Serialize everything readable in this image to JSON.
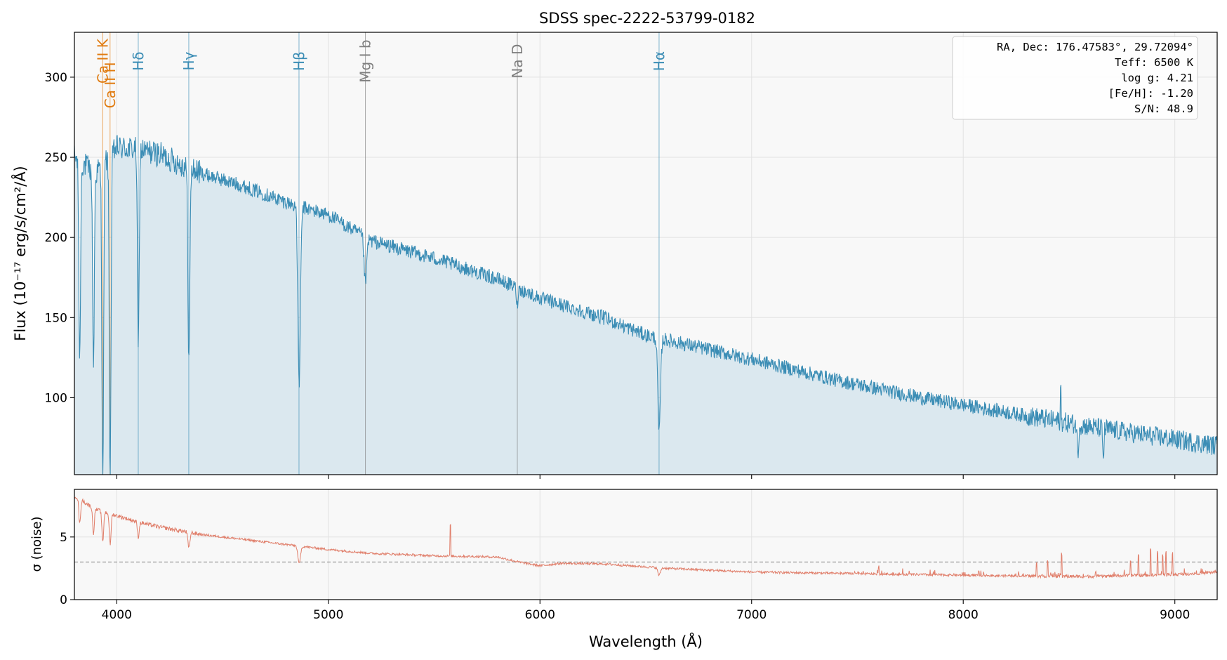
{
  "chart_data": [
    {
      "type": "line",
      "panel": "flux",
      "title": "SDSS spec-2222-53799-0182",
      "xlabel": "",
      "ylabel": "Flux (10⁻¹⁷ erg/s/cm²/Å)",
      "xlim": [
        3800,
        9200
      ],
      "ylim": [
        52,
        328
      ],
      "yticks": [
        100,
        150,
        200,
        250,
        300
      ],
      "xticks": [
        4000,
        5000,
        6000,
        7000,
        8000,
        9000
      ],
      "grid": true,
      "series": [
        {
          "style": "line with filled area",
          "color": "#3b8db5",
          "fill_color": "#dbe8ef",
          "continuum": {
            "x": [
              3800,
              3900,
              4000,
              4100,
              4200,
              4300,
              4400,
              4600,
              4800,
              5000,
              5200,
              5500,
              5800,
              6000,
              6300,
              6500,
              6600,
              6800,
              7000,
              7400,
              7800,
              8200,
              8600,
              9000,
              9200
            ],
            "y": [
              250,
              240,
              256,
              255,
              252,
              246,
              240,
              232,
              222,
              214,
              198,
              187,
              174,
              162,
              150,
              139,
              136,
              130,
              124,
              111,
              100,
              91,
              82,
              74,
              70
            ]
          },
          "absorption_features": [
            {
              "x": 3825,
              "depth": 125,
              "width": 4
            },
            {
              "x": 3890,
              "depth": 120,
              "width": 4
            },
            {
              "x": 3934,
              "depth": 200,
              "width": 4
            },
            {
              "x": 3969,
              "depth": 200,
              "width": 4
            },
            {
              "x": 4102,
              "depth": 125,
              "width": 4
            },
            {
              "x": 4341,
              "depth": 120,
              "width": 4.5
            },
            {
              "x": 4862,
              "depth": 110,
              "width": 6
            },
            {
              "x": 5175,
              "depth": 28,
              "width": 6
            },
            {
              "x": 5892,
              "depth": 12,
              "width": 3
            },
            {
              "x": 6563,
              "depth": 60,
              "width": 6
            },
            {
              "x": 8542,
              "depth": 20,
              "width": 3
            },
            {
              "x": 8662,
              "depth": 18,
              "width": 3
            }
          ],
          "emission_spikes": [
            {
              "x": 8460,
              "height": 20
            }
          ]
        }
      ],
      "spectral_lines": [
        {
          "label": "Ca II K",
          "x": 3933.7,
          "color": "#e07b10",
          "label_y": 310
        },
        {
          "label": "Ca II H",
          "x": 3968.5,
          "color": "#e07b10",
          "label_y": 295
        },
        {
          "label": "Hδ",
          "x": 4101.7,
          "color": "#3b8db5",
          "label_y": 310
        },
        {
          "label": "Hγ",
          "x": 4340.5,
          "color": "#3b8db5",
          "label_y": 310
        },
        {
          "label": "Hβ",
          "x": 4861.3,
          "color": "#3b8db5",
          "label_y": 310
        },
        {
          "label": "Mg I b",
          "x": 5175.0,
          "color": "#7f7f7f",
          "label_y": 310
        },
        {
          "label": "Na D",
          "x": 5893.0,
          "color": "#7f7f7f",
          "label_y": 310
        },
        {
          "label": "Hα",
          "x": 6562.8,
          "color": "#3b8db5",
          "label_y": 310
        }
      ],
      "annotation": {
        "placement": "top-right",
        "lines": [
          "RA, Dec: 176.47583°, 29.72094°",
          "Teff: 6500 K",
          "log g: 4.21",
          "[Fe/H]: -1.20",
          "S/N: 48.9"
        ]
      }
    },
    {
      "type": "line",
      "panel": "noise",
      "title": "",
      "xlabel": "Wavelength (Å)",
      "ylabel": "σ (noise)",
      "xlim": [
        3800,
        9200
      ],
      "ylim": [
        0,
        8.8
      ],
      "yticks": [
        0,
        5
      ],
      "xticks": [
        4000,
        5000,
        6000,
        7000,
        8000,
        9000
      ],
      "grid": true,
      "series": [
        {
          "style": "line",
          "color": "#e07e6a",
          "continuum": {
            "x": [
              3800,
              3900,
              4000,
              4100,
              4200,
              4400,
              4600,
              4800,
              5000,
              5200,
              5500,
              5800,
              5900,
              6000,
              6100,
              6300,
              6600,
              7000,
              7400,
              7800,
              8200,
              8600,
              9000,
              9200
            ],
            "y": [
              8.3,
              7.2,
              6.7,
              6.2,
              5.8,
              5.2,
              4.8,
              4.4,
              4.0,
              3.7,
              3.5,
              3.4,
              3.0,
              2.7,
              2.9,
              2.85,
              2.5,
              2.2,
              2.1,
              2.0,
              1.9,
              1.85,
              2.0,
              2.2
            ]
          },
          "absorption_features": [
            {
              "x": 3825,
              "depth": 2.0,
              "width": 4
            },
            {
              "x": 3890,
              "depth": 2.0,
              "width": 4
            },
            {
              "x": 3934,
              "depth": 2.5,
              "width": 4
            },
            {
              "x": 3969,
              "depth": 2.5,
              "width": 4
            },
            {
              "x": 4102,
              "depth": 1.2,
              "width": 4
            },
            {
              "x": 4341,
              "depth": 1.3,
              "width": 4.5
            },
            {
              "x": 4862,
              "depth": 1.4,
              "width": 6
            },
            {
              "x": 6563,
              "depth": 0.6,
              "width": 6
            }
          ],
          "emission_spikes": [
            {
              "x": 5577,
              "height": 2.5
            },
            {
              "x": 7600,
              "height": 0.6
            },
            {
              "x": 8346,
              "height": 1.0
            },
            {
              "x": 8399,
              "height": 1.2
            },
            {
              "x": 8465,
              "height": 1.6
            },
            {
              "x": 8790,
              "height": 1.2
            },
            {
              "x": 8827,
              "height": 1.6
            },
            {
              "x": 8885,
              "height": 2.0
            },
            {
              "x": 8919,
              "height": 1.8
            },
            {
              "x": 8943,
              "height": 1.6
            },
            {
              "x": 8958,
              "height": 1.8
            },
            {
              "x": 8988,
              "height": 1.7
            }
          ]
        }
      ],
      "reference_line": {
        "y": 3.0,
        "style": "dashed",
        "color": "#999999"
      }
    }
  ]
}
